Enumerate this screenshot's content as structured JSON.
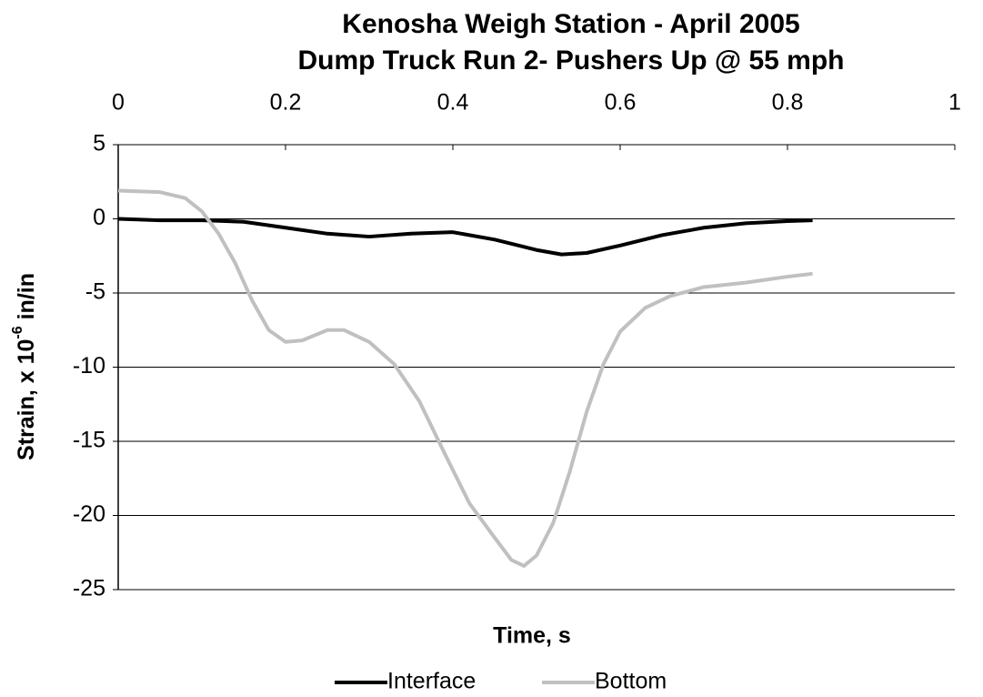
{
  "chart_data": {
    "type": "line",
    "title": [
      "Kenosha Weigh Station - April 2005",
      "Dump Truck Run 2- Pushers Up @ 55 mph"
    ],
    "x_label": "Time, s",
    "y_label": {
      "text": "Strain, x 10",
      "superscript": "-6",
      "suffix": " in/in"
    },
    "xlim": [
      0,
      1
    ],
    "xticks": [
      0,
      0.2,
      0.4,
      0.6,
      0.8,
      1
    ],
    "ylim": [
      -25,
      5
    ],
    "yticks": [
      5,
      0,
      -5,
      -10,
      -15,
      -20,
      -25
    ],
    "grid": true,
    "legend": "bottom",
    "series": [
      {
        "name": "Interface",
        "color": "#000000",
        "x": [
          0,
          0.05,
          0.1,
          0.15,
          0.2,
          0.25,
          0.3,
          0.35,
          0.4,
          0.45,
          0.5,
          0.53,
          0.56,
          0.6,
          0.65,
          0.7,
          0.75,
          0.8,
          0.83
        ],
        "values": [
          0,
          -0.1,
          -0.1,
          -0.2,
          -0.6,
          -1.0,
          -1.2,
          -1.0,
          -0.9,
          -1.4,
          -2.1,
          -2.4,
          -2.3,
          -1.8,
          -1.1,
          -0.6,
          -0.3,
          -0.15,
          -0.1
        ]
      },
      {
        "name": "Bottom",
        "color": "#c0c0c0",
        "x": [
          0,
          0.05,
          0.08,
          0.1,
          0.12,
          0.14,
          0.16,
          0.18,
          0.2,
          0.22,
          0.25,
          0.27,
          0.3,
          0.33,
          0.36,
          0.39,
          0.42,
          0.45,
          0.47,
          0.485,
          0.5,
          0.52,
          0.54,
          0.56,
          0.58,
          0.6,
          0.63,
          0.66,
          0.7,
          0.75,
          0.8,
          0.83
        ],
        "values": [
          1.9,
          1.8,
          1.4,
          0.5,
          -1,
          -3,
          -5.5,
          -7.5,
          -8.3,
          -8.2,
          -7.5,
          -7.5,
          -8.3,
          -9.8,
          -12.3,
          -15.8,
          -19.2,
          -21.5,
          -23,
          -23.4,
          -22.7,
          -20.5,
          -17,
          -13,
          -9.8,
          -7.6,
          -6,
          -5.2,
          -4.6,
          -4.3,
          -3.9,
          -3.7
        ]
      }
    ]
  }
}
